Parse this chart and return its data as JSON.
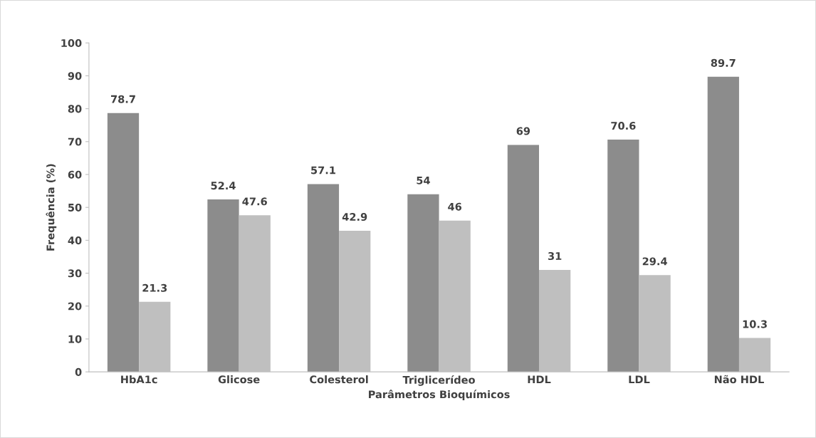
{
  "chart_data": {
    "type": "bar",
    "xlabel": "Parâmetros Bioquímicos",
    "ylabel": "Frequência (%)",
    "categories": [
      "HbA1c",
      "Glicose",
      "Colesterol",
      "Triglicerídeo",
      "HDL",
      "LDL",
      "Não HDL"
    ],
    "series": [
      {
        "color": "#8c8c8c",
        "values": [
          78.7,
          52.4,
          57.1,
          54,
          69,
          70.6,
          89.7
        ]
      },
      {
        "color": "#bfbfbf",
        "values": [
          21.3,
          47.6,
          42.9,
          46,
          31,
          29.4,
          10.3
        ]
      }
    ],
    "ylim": [
      0,
      100
    ],
    "yticks": [
      0,
      10,
      20,
      30,
      40,
      50,
      60,
      70,
      80,
      90,
      100
    ],
    "grid": false,
    "data_labels": true
  }
}
